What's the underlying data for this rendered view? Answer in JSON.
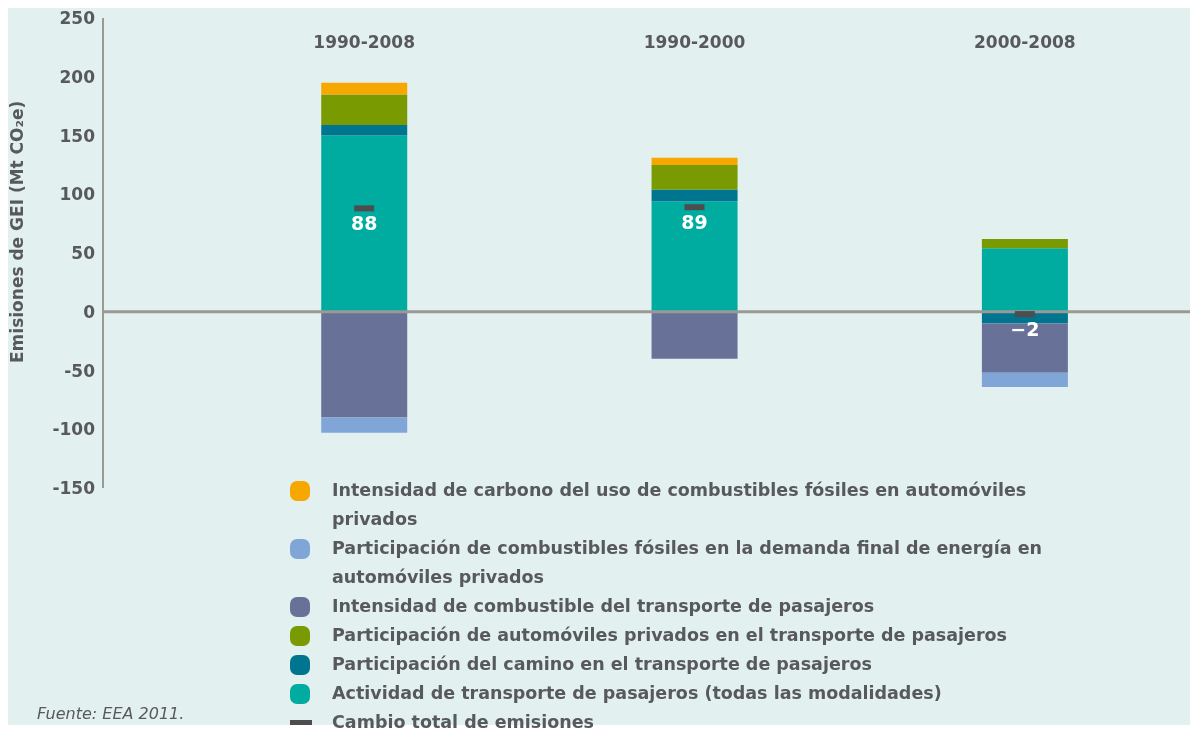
{
  "chart_data": {
    "type": "bar",
    "stacked": true,
    "ylabel": "Emisiones de GEI (Mt CO₂e)",
    "categories": [
      "1990-2008",
      "1990-2000",
      "2000-2008"
    ],
    "series": [
      {
        "name": "Actividad de transporte de pasajeros (todas las modalidades)",
        "color": "#00aba0",
        "values": [
          150,
          94,
          54
        ]
      },
      {
        "name": "Participación del camino en el transporte de pasajeros",
        "color": "#00758f",
        "values": [
          9,
          10,
          -10
        ]
      },
      {
        "name": "Participación de automóviles privados en el transporte de pasajeros",
        "color": "#7a9a01",
        "values": [
          26,
          21,
          8
        ]
      },
      {
        "name": "Intensidad de combustible del transporte de pasajeros",
        "color": "#687298",
        "values": [
          -90,
          -40,
          -42
        ]
      },
      {
        "name": "Participación de combustibles fósiles en la demanda final de energía en automóviles privados",
        "color": "#80a6d8",
        "values": [
          -13,
          null,
          -12
        ]
      },
      {
        "name": "Intensidad de carbono del uso de combustibles fósiles en automóviles privados",
        "color": "#f6a800",
        "values": [
          10,
          6,
          null
        ]
      },
      {
        "name": "Cambio total de emisiones",
        "type": "scatter",
        "color": "#4d4d4f",
        "marker": "square",
        "x": [
          "1990-2008",
          "1990-2000",
          "2000-2008"
        ],
        "values": [
          88,
          89,
          -2
        ],
        "value_labels": [
          "88",
          "89",
          "−2"
        ]
      }
    ],
    "ylim": [
      -150,
      250
    ],
    "yticks": [
      -150,
      -100,
      -50,
      0,
      50,
      100,
      150,
      200,
      250
    ],
    "ref_lines": [
      {
        "axis": "y",
        "value": 0,
        "color": "#9a9a95"
      }
    ],
    "grid": false,
    "legend": "bottom",
    "annotations": [
      "Fuente: EEA 2011."
    ]
  }
}
